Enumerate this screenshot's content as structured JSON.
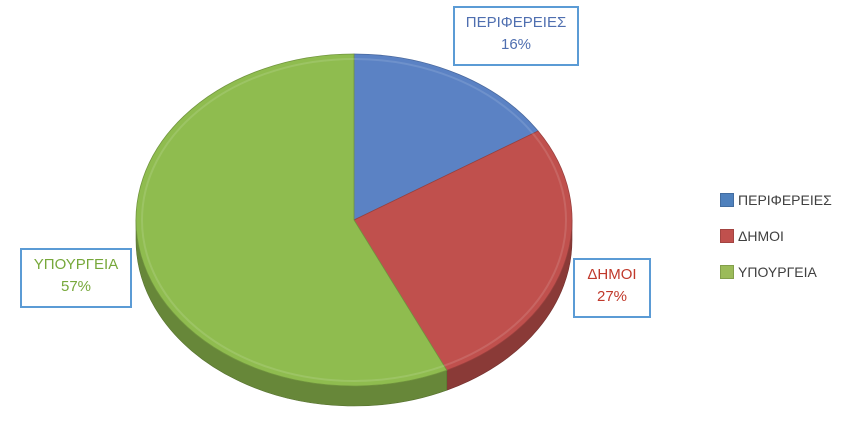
{
  "chart_data": {
    "type": "pie",
    "title": "",
    "slices": [
      {
        "label": "ΠΕΡΙΦΕΡΕΙΕΣ",
        "value": 16,
        "value_label": "16%",
        "color": "#5b82c4"
      },
      {
        "label": "ΔΗΜΟΙ",
        "value": 27,
        "value_label": "27%",
        "color": "#c0504d"
      },
      {
        "label": "ΥΠΟΥΡΓΕΙΑ",
        "value": 57,
        "value_label": "57%",
        "color": "#8fbc4f"
      }
    ],
    "style": "3d",
    "legend_position": "right"
  },
  "legend": {
    "items": [
      {
        "label": "ΠΕΡΙΦΕΡΕΙΕΣ",
        "color": "#4f81bd"
      },
      {
        "label": "ΔΗΜΟΙ",
        "color": "#c0504d"
      },
      {
        "label": "ΥΠΟΥΡΓΕΙΑ",
        "color": "#9bbb59"
      }
    ]
  },
  "colors": {
    "callout_border": "#5b9bd5",
    "label_peri": "#4f6fb0",
    "label_dimoi": "#c0392b",
    "label_ypourgeia": "#77a83a"
  }
}
